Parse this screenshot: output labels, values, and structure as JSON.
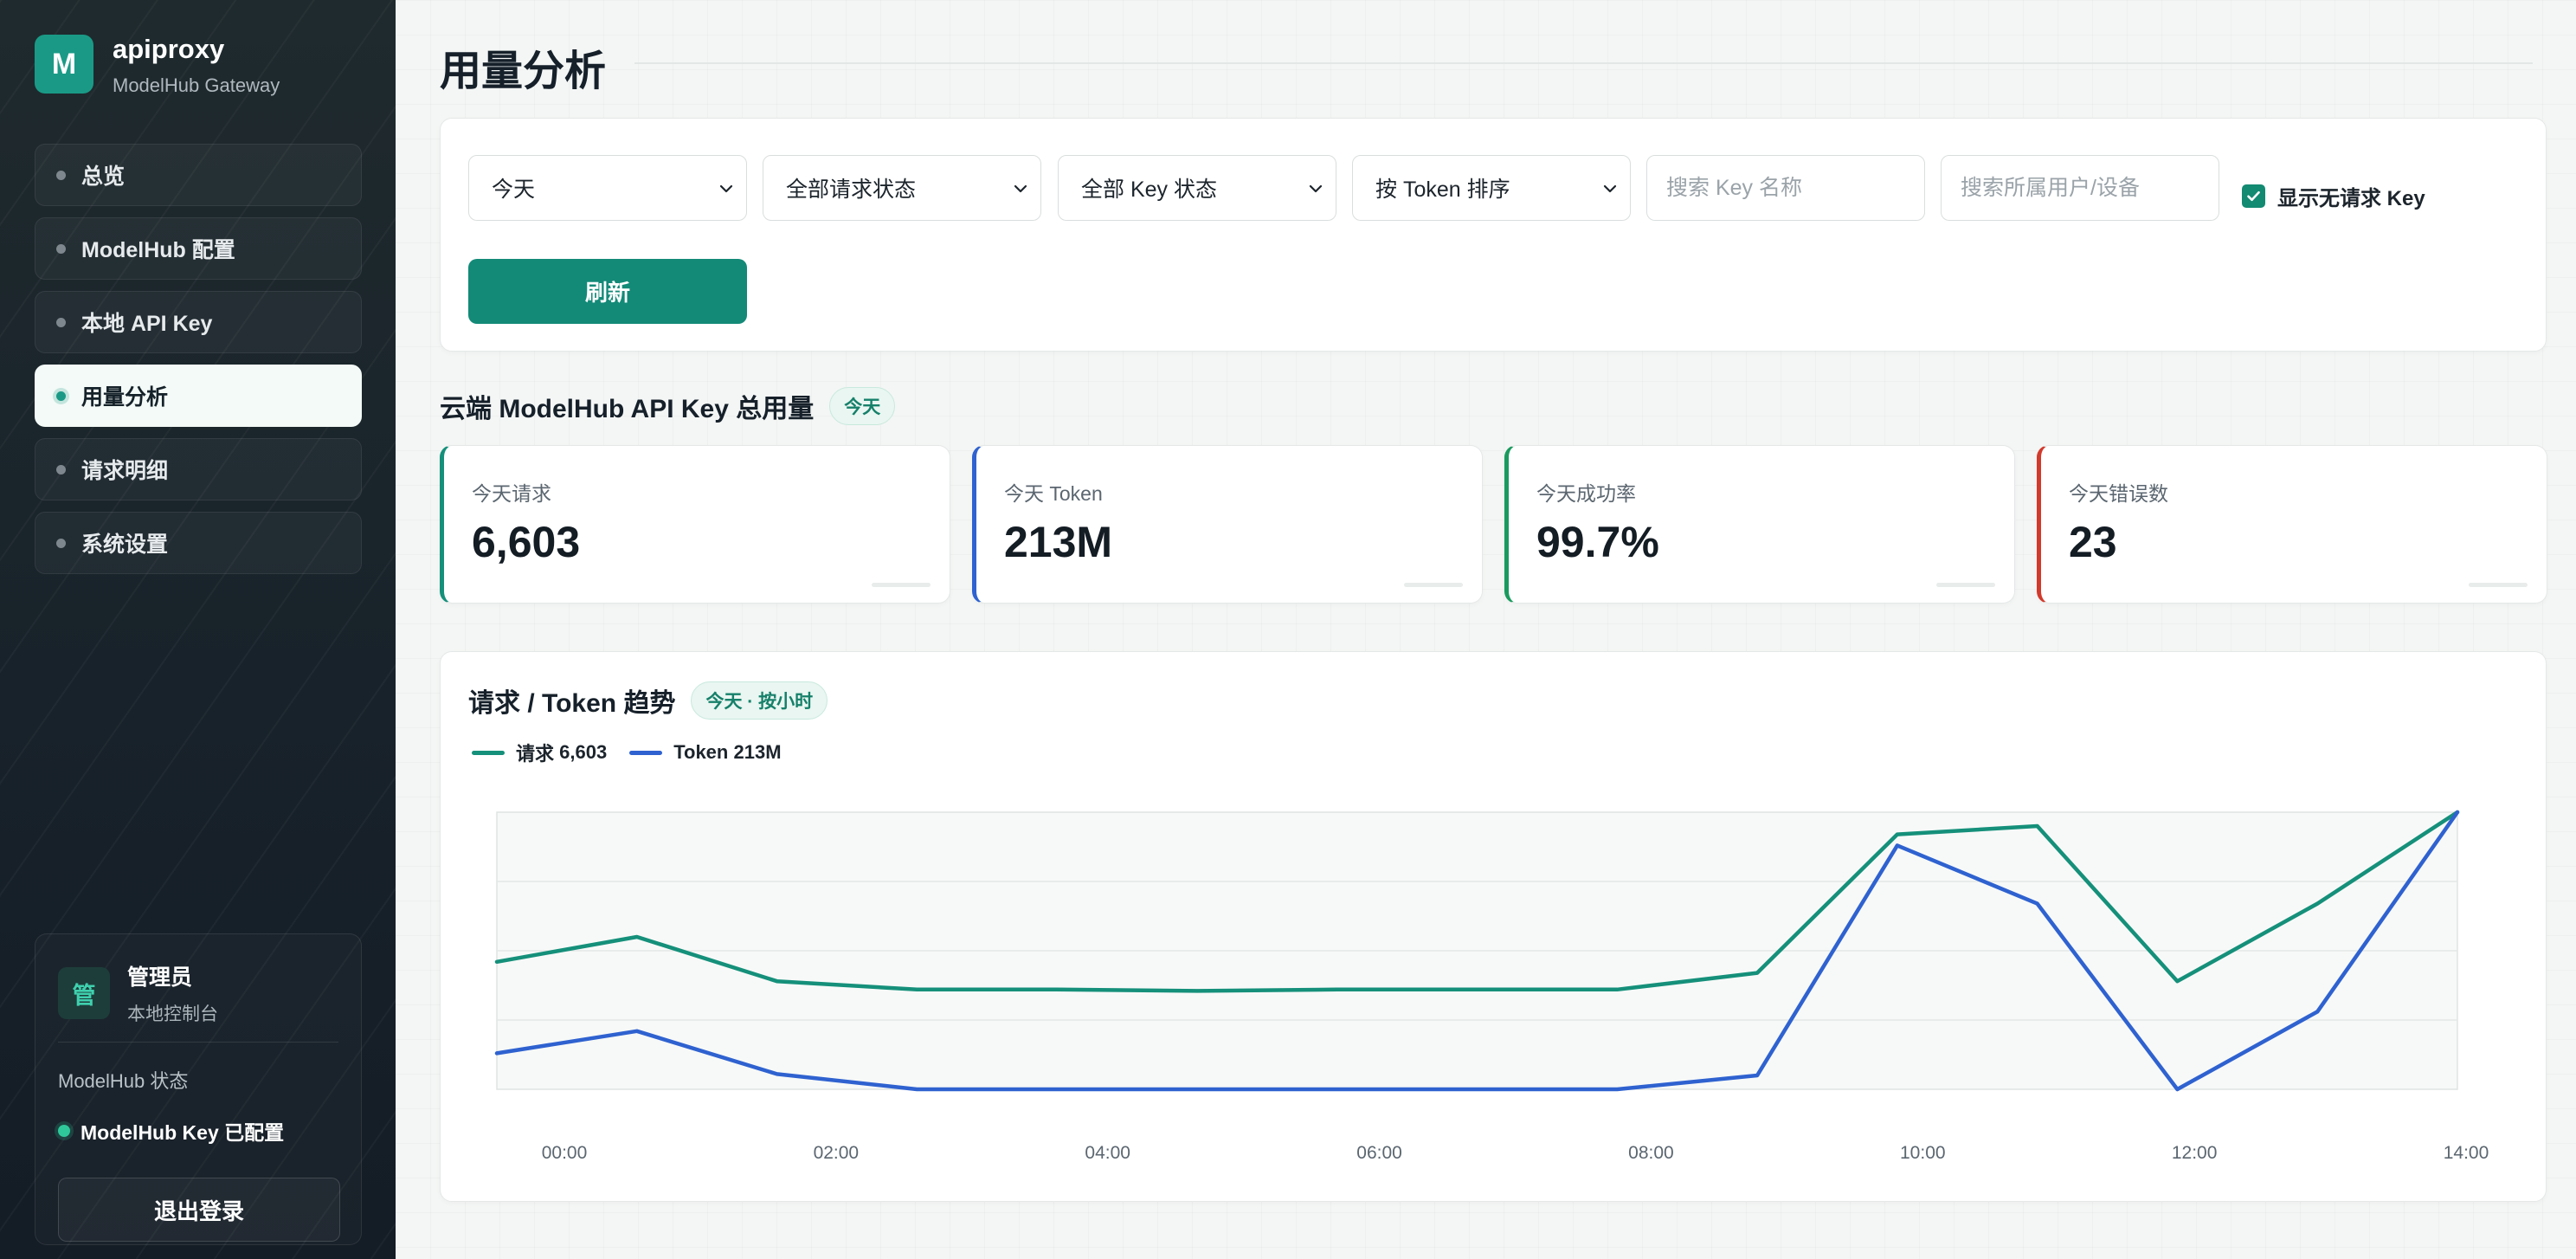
{
  "brand": {
    "logo_letter": "M",
    "name": "apiproxy",
    "subtitle": "ModelHub Gateway"
  },
  "nav": [
    {
      "label": "总览",
      "active": false
    },
    {
      "label": "ModelHub 配置",
      "active": false
    },
    {
      "label": "本地 API Key",
      "active": false
    },
    {
      "label": "用量分析",
      "active": true
    },
    {
      "label": "请求明细",
      "active": false
    },
    {
      "label": "系统设置",
      "active": false
    }
  ],
  "user": {
    "avatar": "管",
    "name": "管理员",
    "role": "本地控制台",
    "modelhub_label": "ModelHub 状态",
    "modelhub_status": "ModelHub Key 已配置",
    "logout": "退出登录"
  },
  "page_title": "用量分析",
  "filters": {
    "range": "今天",
    "request_status": "全部请求状态",
    "key_status": "全部 Key 状态",
    "sort": "按 Token 排序",
    "search_key_placeholder": "搜索 Key 名称",
    "search_user_placeholder": "搜索所属用户/设备",
    "show_idle_label": "显示无请求 Key",
    "show_idle_checked": true,
    "refresh": "刷新"
  },
  "summary": {
    "title": "云端 ModelHub API Key 总用量",
    "badge": "今天",
    "cards": [
      {
        "label": "今天请求",
        "value": "6,603",
        "color": "#15907a"
      },
      {
        "label": "今天 Token",
        "value": "213M",
        "color": "#2f62d0"
      },
      {
        "label": "今天成功率",
        "value": "99.7%",
        "color": "#1a9a5e"
      },
      {
        "label": "今天错误数",
        "value": "23",
        "color": "#d23a2c"
      }
    ]
  },
  "trend": {
    "title": "请求 / Token 趋势",
    "badge": "今天 · 按小时",
    "legend": [
      {
        "name": "请求",
        "value": "6,603",
        "color": "#15907a"
      },
      {
        "name": "Token",
        "value": "213M",
        "color": "#2f62d0"
      }
    ]
  },
  "chart_data": {
    "type": "line",
    "x": [
      "00:00",
      "01:00",
      "02:00",
      "03:00",
      "04:00",
      "05:00",
      "06:00",
      "07:00",
      "08:00",
      "09:00",
      "10:00",
      "11:00",
      "12:00",
      "13:00",
      "14:00"
    ],
    "tick_labels": [
      "00:00",
      "02:00",
      "04:00",
      "06:00",
      "08:00",
      "10:00",
      "12:00",
      "14:00"
    ],
    "ylim": [
      0,
      1
    ],
    "grid": true,
    "y_axis_labels": false,
    "series": [
      {
        "name": "请求",
        "color": "#15907a",
        "values": [
          0.46,
          0.55,
          0.39,
          0.36,
          0.36,
          0.355,
          0.36,
          0.36,
          0.36,
          0.42,
          0.92,
          0.95,
          0.39,
          0.67,
          1.0
        ]
      },
      {
        "name": "Token",
        "color": "#2f62d0",
        "values": [
          0.13,
          0.21,
          0.055,
          0.0,
          0.0,
          0.0,
          0.0,
          0.0,
          0.0,
          0.05,
          0.88,
          0.67,
          0.0,
          0.28,
          1.0
        ]
      }
    ]
  }
}
